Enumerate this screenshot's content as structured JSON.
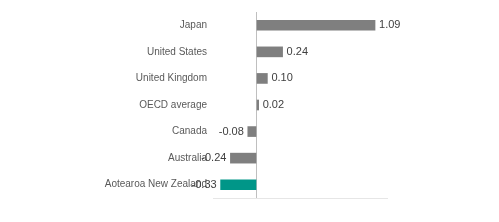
{
  "chart_data": {
    "type": "bar",
    "orientation": "horizontal",
    "categories": [
      "Japan",
      "United States",
      "United Kingdom",
      "OECD average",
      "Canada",
      "Australia",
      "Aotearoa New Zealand"
    ],
    "values": [
      1.09,
      0.24,
      0.1,
      0.02,
      -0.08,
      -0.24,
      -0.33
    ],
    "value_labels": [
      "1.09",
      "0.24",
      "0.10",
      "0.02",
      "-0.08",
      "-0.24",
      "-0.33"
    ],
    "colors": [
      "#7f7f7f",
      "#7f7f7f",
      "#7f7f7f",
      "#7f7f7f",
      "#7f7f7f",
      "#7f7f7f",
      "#009688"
    ],
    "xlim": [
      -0.4,
      1.2
    ],
    "xticks": [
      0
    ],
    "data_labels": true,
    "tick_labels": "y",
    "grid": false
  }
}
